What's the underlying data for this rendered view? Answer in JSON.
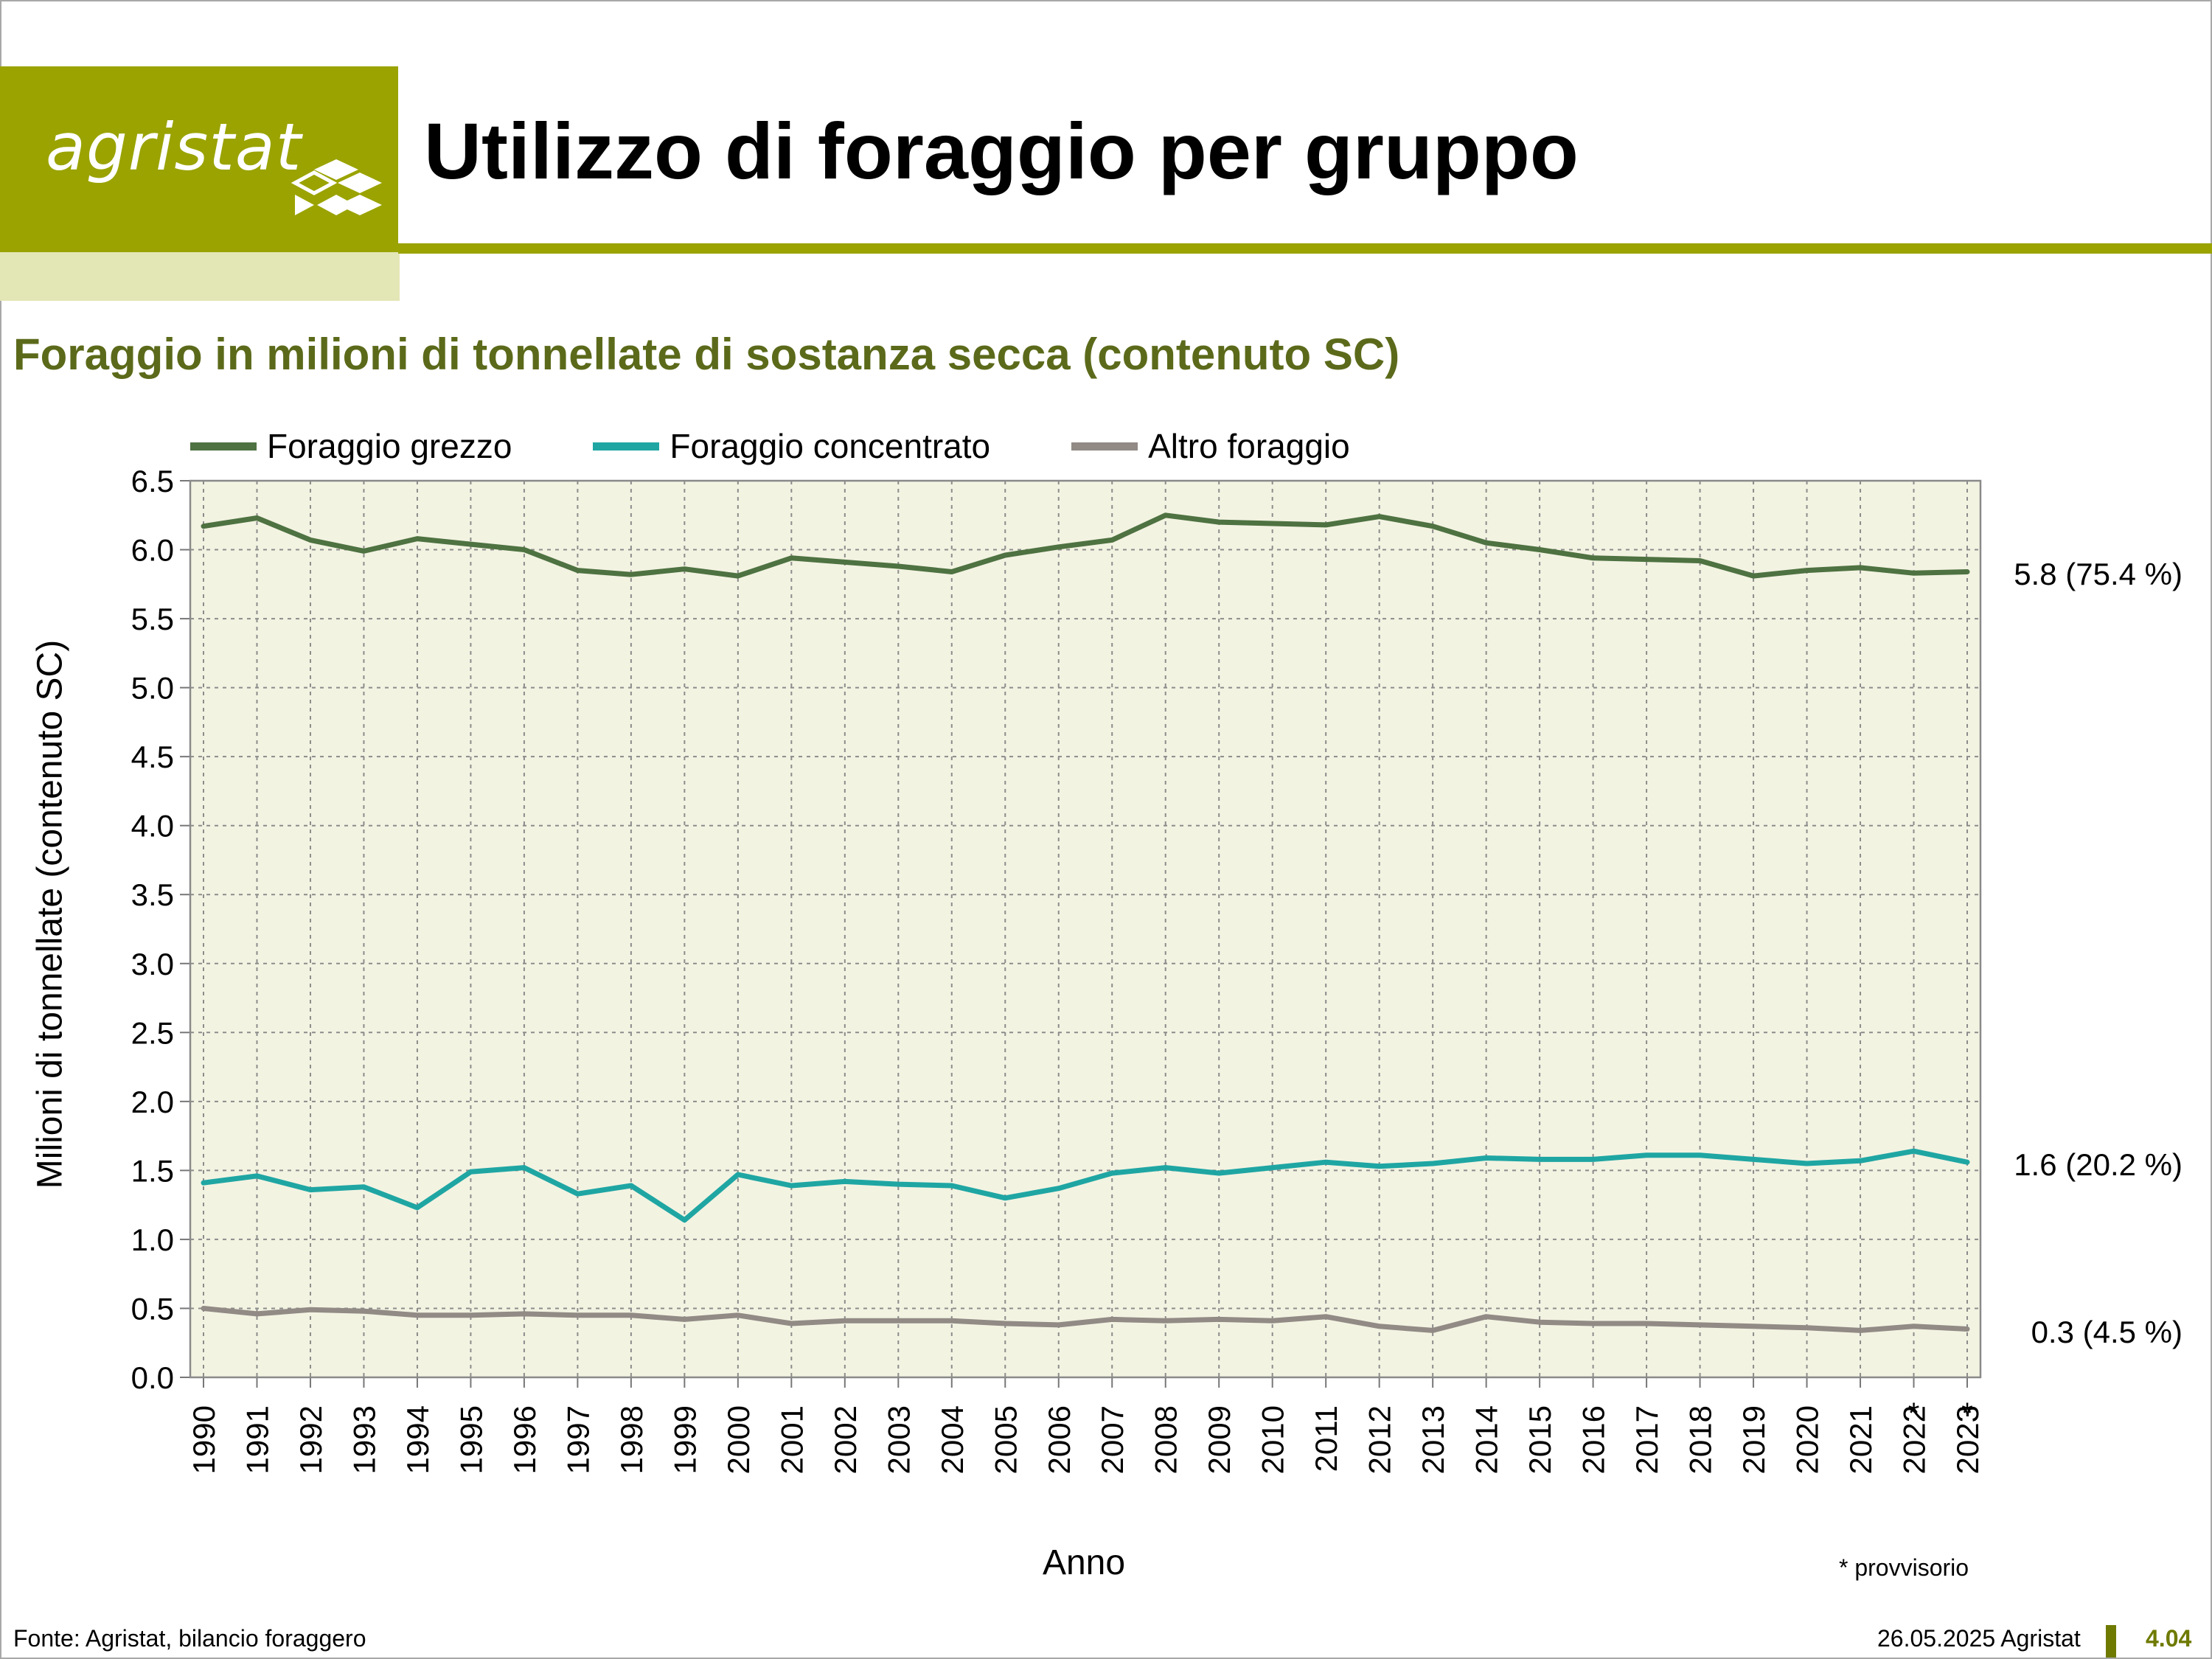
{
  "brand": {
    "logo_text": "agristat",
    "accent": "#9aa300",
    "accent_light": "#e3e6b5"
  },
  "page": {
    "title": "Utilizzo di foraggio per gruppo",
    "subtitle": "Foraggio in milioni di tonnellate di sostanza secca (contenuto SC)",
    "footnote": "* provvisorio",
    "source": "Fonte: Agristat, bilancio foraggero",
    "date": "26.05.2025 Agristat",
    "page_number": "4.04"
  },
  "chart_data": {
    "type": "line",
    "title": "",
    "xlabel": "Anno",
    "ylabel": "Milioni di tonnellate (contenuto SC)",
    "ylim": [
      0,
      6.5
    ],
    "yticks": [
      "0.0",
      "0.5",
      "1.0",
      "1.5",
      "2.0",
      "2.5",
      "3.0",
      "3.5",
      "4.0",
      "4.5",
      "5.0",
      "5.5",
      "6.0",
      "6.5"
    ],
    "grid": true,
    "legend_position": "top-left",
    "plot_background": "#f3f3e2",
    "categories": [
      "1990",
      "1991",
      "1992",
      "1993",
      "1994",
      "1995",
      "1996",
      "1997",
      "1998",
      "1999",
      "2000",
      "2001",
      "2002",
      "2003",
      "2004",
      "2005",
      "2006",
      "2007",
      "2008",
      "2009",
      "2010",
      "2011",
      "2012",
      "2013",
      "2014",
      "2015",
      "2016",
      "2017",
      "2018",
      "2019",
      "2020",
      "2021",
      "2022",
      "2023"
    ],
    "provisional_marks": [
      "",
      "",
      "",
      "",
      "",
      "",
      "",
      "",
      "",
      "",
      "",
      "",
      "",
      "",
      "",
      "",
      "",
      "",
      "",
      "",
      "",
      "",
      "",
      "",
      "",
      "",
      "",
      "",
      "",
      "",
      "",
      "",
      "*",
      "*"
    ],
    "series": [
      {
        "name": "Foraggio grezzo",
        "color": "#4e7241",
        "values": [
          6.17,
          6.23,
          6.07,
          5.99,
          6.08,
          6.04,
          6.0,
          5.85,
          5.82,
          5.86,
          5.81,
          5.94,
          5.91,
          5.88,
          5.84,
          5.96,
          6.02,
          6.07,
          6.25,
          6.2,
          6.19,
          6.18,
          6.24,
          6.17,
          6.05,
          6.0,
          5.94,
          5.93,
          5.92,
          5.81,
          5.85,
          5.87,
          5.83,
          5.84
        ],
        "end_label": "5.8 (75.4 %)"
      },
      {
        "name": "Foraggio concentrato",
        "color": "#1fa6a3",
        "values": [
          1.41,
          1.46,
          1.36,
          1.38,
          1.23,
          1.49,
          1.52,
          1.33,
          1.39,
          1.14,
          1.47,
          1.39,
          1.42,
          1.4,
          1.39,
          1.3,
          1.37,
          1.48,
          1.52,
          1.48,
          1.52,
          1.56,
          1.53,
          1.55,
          1.59,
          1.58,
          1.58,
          1.61,
          1.61,
          1.58,
          1.55,
          1.57,
          1.64,
          1.56
        ],
        "end_label": "1.6 (20.2 %)"
      },
      {
        "name": "Altro foraggio",
        "color": "#918a85",
        "values": [
          0.5,
          0.46,
          0.49,
          0.48,
          0.45,
          0.45,
          0.46,
          0.45,
          0.45,
          0.42,
          0.45,
          0.39,
          0.41,
          0.41,
          0.41,
          0.39,
          0.38,
          0.42,
          0.41,
          0.42,
          0.41,
          0.44,
          0.37,
          0.34,
          0.44,
          0.4,
          0.39,
          0.39,
          0.38,
          0.37,
          0.36,
          0.34,
          0.37,
          0.35
        ],
        "end_label": "0.3 (4.5 %)"
      }
    ]
  }
}
